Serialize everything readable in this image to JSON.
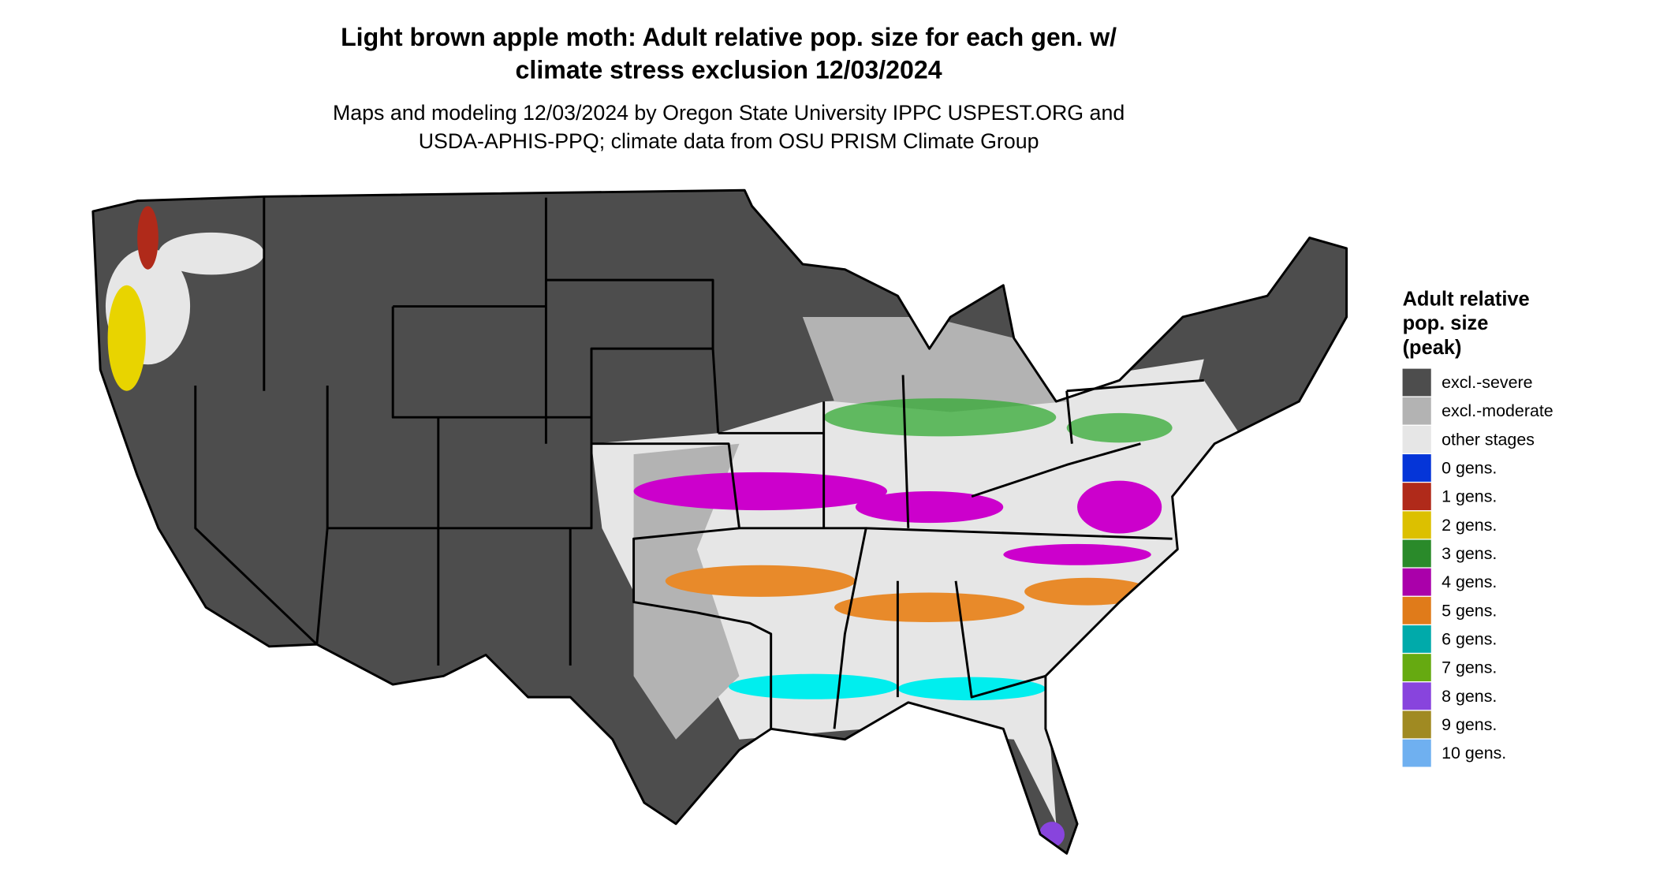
{
  "title": [
    "Light brown apple moth: Adult relative pop. size for each gen. w/",
    "climate stress exclusion 12/03/2024"
  ],
  "subtitle": [
    "Maps and modeling 12/03/2024 by Oregon State University IPPC USPEST.ORG and",
    "USDA-APHIS-PPQ; climate data from OSU PRISM Climate Group"
  ],
  "legend": {
    "title": [
      "Adult relative",
      "pop. size",
      "(peak)"
    ],
    "items": [
      {
        "label": "excl.-severe",
        "color": "#4d4d4d"
      },
      {
        "label": "excl.-moderate",
        "color": "#b3b3b3"
      },
      {
        "label": "other stages",
        "color": "#e6e6e6"
      },
      {
        "label": "0 gens.",
        "color": "#0535d8"
      },
      {
        "label": "1 gens.",
        "color": "#b02a1a"
      },
      {
        "label": "2 gens.",
        "color": "#dcc000"
      },
      {
        "label": "3 gens.",
        "color": "#2a8a2a"
      },
      {
        "label": "4 gens.",
        "color": "#aa00aa"
      },
      {
        "label": "5 gens.",
        "color": "#e07b1a"
      },
      {
        "label": "6 gens.",
        "color": "#00aaaa"
      },
      {
        "label": "7 gens.",
        "color": "#66aa11"
      },
      {
        "label": "8 gens.",
        "color": "#8844dd"
      },
      {
        "label": "9 gens.",
        "color": "#a08a22"
      },
      {
        "label": "10 gens.",
        "color": "#6fb0f0"
      }
    ]
  }
}
